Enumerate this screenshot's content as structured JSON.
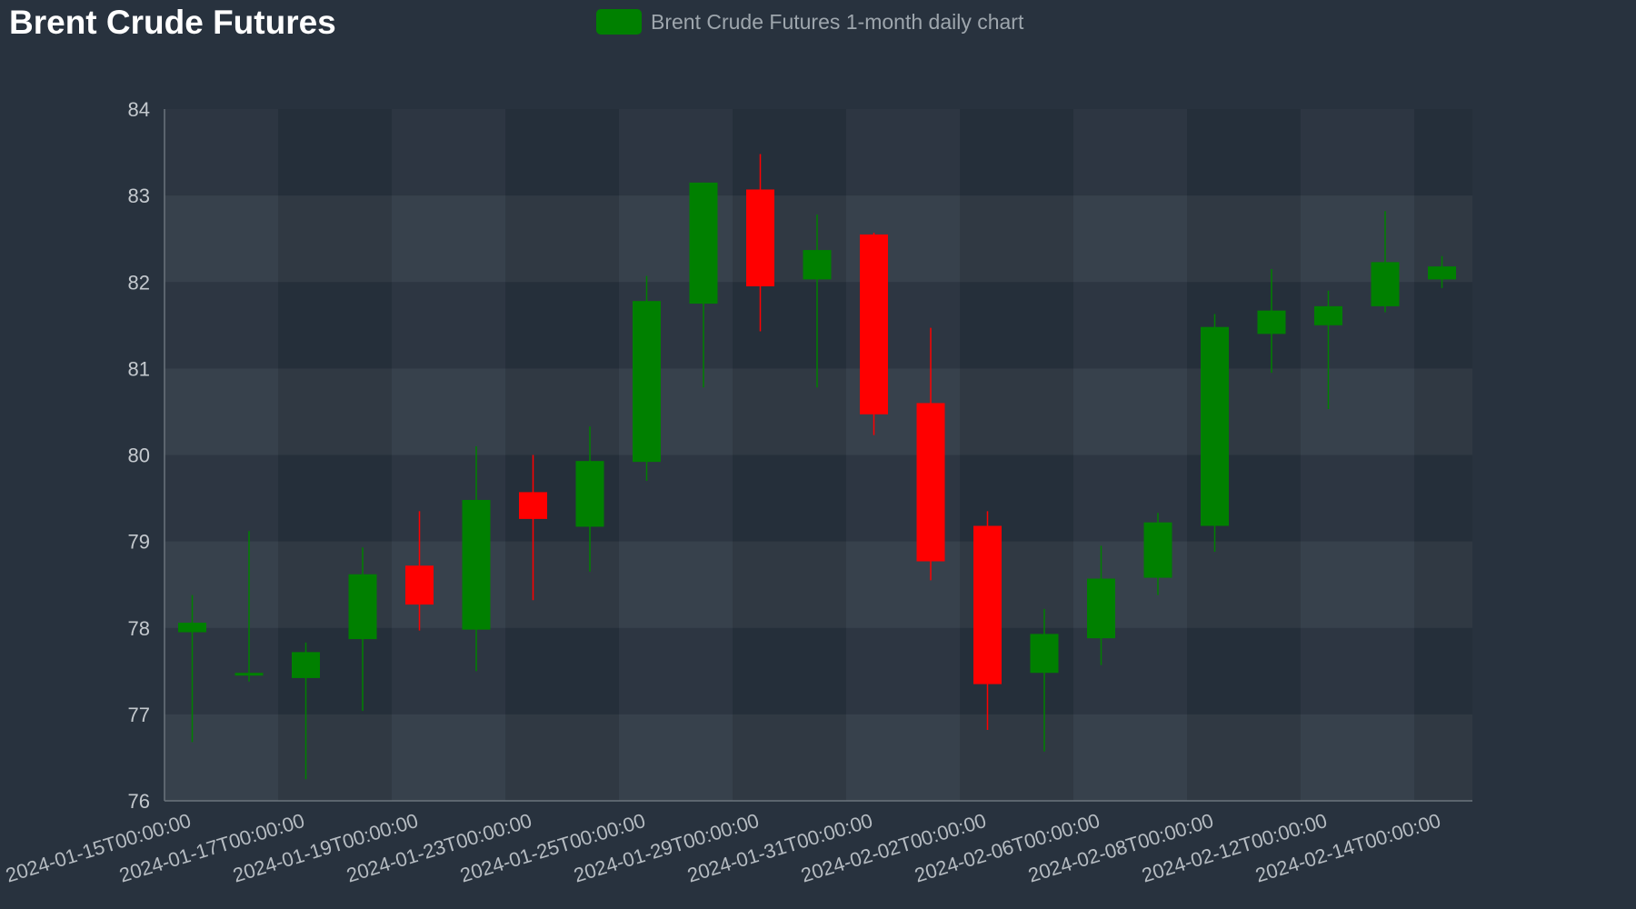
{
  "colors": {
    "background": "#28323e",
    "up": "#008000",
    "down": "#ff0000",
    "axis": "#6b747d",
    "tick_text": "#c4c9ce"
  },
  "chart_data": {
    "type": "candlestick",
    "title": "Brent Crude Futures",
    "legend": {
      "label": "Brent Crude Futures 1-month daily chart",
      "position": "top-center",
      "color": "#008000"
    },
    "xlabel": "",
    "ylabel": "",
    "ylim": [
      76,
      84
    ],
    "y_ticks": [
      "76",
      "77",
      "78",
      "79",
      "80",
      "81",
      "82",
      "83",
      "84"
    ],
    "x_tick_labels": [
      "2024-01-15T00:00:00",
      "2024-01-17T00:00:00",
      "2024-01-19T00:00:00",
      "2024-01-23T00:00:00",
      "2024-01-25T00:00:00",
      "2024-01-29T00:00:00",
      "2024-01-31T00:00:00",
      "2024-02-02T00:00:00",
      "2024-02-06T00:00:00",
      "2024-02-08T00:00:00",
      "2024-02-12T00:00:00",
      "2024-02-14T00:00:00"
    ],
    "grid": true,
    "series": [
      {
        "name": "Brent Crude Futures 1-month daily chart",
        "points": [
          {
            "date": "2024-01-15",
            "open": 77.95,
            "high": 78.38,
            "low": 76.68,
            "close": 78.06
          },
          {
            "date": "2024-01-16",
            "open": 77.45,
            "high": 79.12,
            "low": 77.38,
            "close": 77.48
          },
          {
            "date": "2024-01-17",
            "open": 77.42,
            "high": 77.83,
            "low": 76.25,
            "close": 77.72
          },
          {
            "date": "2024-01-18",
            "open": 77.87,
            "high": 78.93,
            "low": 77.04,
            "close": 78.62
          },
          {
            "date": "2024-01-19",
            "open": 78.72,
            "high": 79.35,
            "low": 77.97,
            "close": 78.27
          },
          {
            "date": "2024-01-22",
            "open": 77.98,
            "high": 80.1,
            "low": 77.5,
            "close": 79.48
          },
          {
            "date": "2024-01-23",
            "open": 79.57,
            "high": 80.0,
            "low": 78.32,
            "close": 79.26
          },
          {
            "date": "2024-01-24",
            "open": 79.17,
            "high": 80.33,
            "low": 78.65,
            "close": 79.93
          },
          {
            "date": "2024-01-25",
            "open": 79.92,
            "high": 82.07,
            "low": 79.7,
            "close": 81.78
          },
          {
            "date": "2024-01-26",
            "open": 81.75,
            "high": 83.15,
            "low": 80.78,
            "close": 83.15
          },
          {
            "date": "2024-01-29",
            "open": 83.07,
            "high": 83.48,
            "low": 81.43,
            "close": 81.95
          },
          {
            "date": "2024-01-30",
            "open": 82.03,
            "high": 82.78,
            "low": 80.78,
            "close": 82.37
          },
          {
            "date": "2024-01-31",
            "open": 82.55,
            "high": 82.57,
            "low": 80.23,
            "close": 80.47
          },
          {
            "date": "2024-02-01",
            "open": 80.6,
            "high": 81.47,
            "low": 78.55,
            "close": 78.77
          },
          {
            "date": "2024-02-02",
            "open": 79.18,
            "high": 79.35,
            "low": 76.82,
            "close": 77.35
          },
          {
            "date": "2024-02-05",
            "open": 77.48,
            "high": 78.22,
            "low": 76.57,
            "close": 77.93
          },
          {
            "date": "2024-02-06",
            "open": 77.88,
            "high": 78.95,
            "low": 77.57,
            "close": 78.57
          },
          {
            "date": "2024-02-07",
            "open": 78.58,
            "high": 79.33,
            "low": 78.38,
            "close": 79.22
          },
          {
            "date": "2024-02-08",
            "open": 79.18,
            "high": 81.63,
            "low": 78.88,
            "close": 81.48
          },
          {
            "date": "2024-02-09",
            "open": 81.4,
            "high": 82.15,
            "low": 80.95,
            "close": 81.67
          },
          {
            "date": "2024-02-12",
            "open": 81.5,
            "high": 81.9,
            "low": 80.53,
            "close": 81.72
          },
          {
            "date": "2024-02-13",
            "open": 81.72,
            "high": 82.82,
            "low": 81.65,
            "close": 82.23
          },
          {
            "date": "2024-02-14",
            "open": 82.03,
            "high": 82.3,
            "low": 81.93,
            "close": 82.18
          }
        ]
      }
    ]
  }
}
